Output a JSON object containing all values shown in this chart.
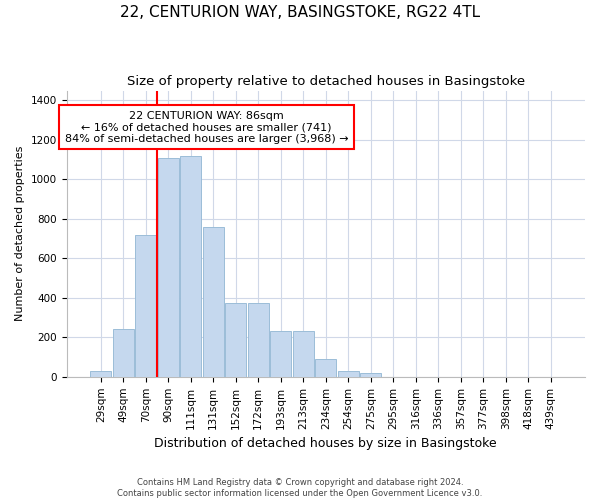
{
  "title": "22, CENTURION WAY, BASINGSTOKE, RG22 4TL",
  "subtitle": "Size of property relative to detached houses in Basingstoke",
  "xlabel": "Distribution of detached houses by size in Basingstoke",
  "ylabel": "Number of detached properties",
  "categories": [
    "29sqm",
    "49sqm",
    "70sqm",
    "90sqm",
    "111sqm",
    "131sqm",
    "152sqm",
    "172sqm",
    "193sqm",
    "213sqm",
    "234sqm",
    "254sqm",
    "275sqm",
    "295sqm",
    "316sqm",
    "336sqm",
    "357sqm",
    "377sqm",
    "398sqm",
    "418sqm",
    "439sqm"
  ],
  "values": [
    30,
    240,
    720,
    1110,
    1120,
    760,
    375,
    375,
    230,
    230,
    88,
    30,
    20,
    0,
    0,
    0,
    0,
    0,
    0,
    0,
    0
  ],
  "bar_color": "#c5d8ee",
  "bar_edge_color": "#9bbdd8",
  "vline_index": 3,
  "vline_color": "red",
  "annotation_text": "22 CENTURION WAY: 86sqm\n← 16% of detached houses are smaller (741)\n84% of semi-detached houses are larger (3,968) →",
  "annotation_box_color": "white",
  "annotation_box_edge_color": "red",
  "ylim": [
    0,
    1450
  ],
  "yticks": [
    0,
    200,
    400,
    600,
    800,
    1000,
    1200,
    1400
  ],
  "footnote": "Contains HM Land Registry data © Crown copyright and database right 2024.\nContains public sector information licensed under the Open Government Licence v3.0.",
  "title_fontsize": 11,
  "subtitle_fontsize": 9.5,
  "xlabel_fontsize": 9,
  "ylabel_fontsize": 8,
  "tick_fontsize": 7.5,
  "background_color": "#ffffff",
  "grid_color": "#d0d8e8"
}
